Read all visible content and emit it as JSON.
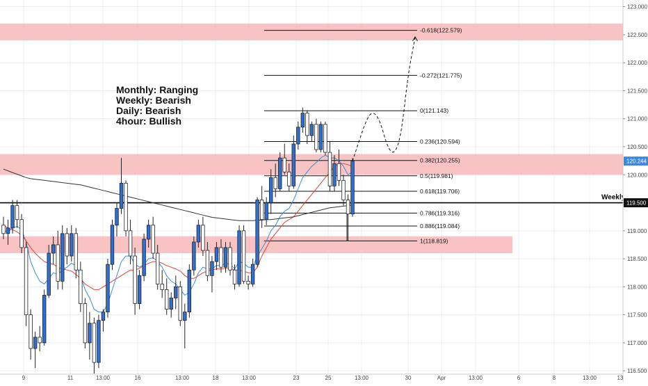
{
  "chart_data": {
    "type": "candlestick",
    "colors": {
      "bull": "#2f6fcf",
      "bear": "#ffffff",
      "wick": "#222222",
      "zone": "#f6b9b9",
      "ema_fast": "#3a8fd8",
      "ema_slow": "#e0443a",
      "ma_long": "#333333",
      "price_tag": "#3d88e3",
      "grid": "#e9ecf1"
    },
    "ylim": [
      116.44,
      123.12
    ],
    "y_ticks": [
      "116.500",
      "117.000",
      "117.500",
      "118.000",
      "118.500",
      "119.000",
      "119.500",
      "120.000",
      "120.500",
      "121.000",
      "121.500",
      "122.000",
      "122.500",
      "123.000"
    ],
    "x_ticks": [
      "9",
      "11",
      "13:00",
      "16",
      "13:00",
      "18",
      "13:00",
      "23",
      "25",
      "13:00",
      "30",
      "Apr",
      "13:00",
      "6",
      "8",
      "13:00",
      "13"
    ],
    "current_price": "120.244",
    "weekly": {
      "label": "Weekly",
      "price": 119.5,
      "price_label": "119.500"
    },
    "zones": [
      {
        "from": 122.4,
        "to": 122.7
      },
      {
        "from": 120.0,
        "to": 120.37
      },
      {
        "from": 118.6,
        "to": 118.9
      }
    ],
    "fib_levels": [
      {
        "ratio": "-0.618",
        "price": 122.579,
        "label": "-0.618(122.579)"
      },
      {
        "ratio": "-0.272",
        "price": 121.775,
        "label": "-0.272(121.775)"
      },
      {
        "ratio": "0",
        "price": 121.143,
        "label": "0(121.143)"
      },
      {
        "ratio": "0.236",
        "price": 120.594,
        "label": "0.236(120.594)"
      },
      {
        "ratio": "0.382",
        "price": 120.255,
        "label": "0.382(120.255)"
      },
      {
        "ratio": "0.5",
        "price": 119.981,
        "label": "0.5(119.981)"
      },
      {
        "ratio": "0.618",
        "price": 119.706,
        "label": "0.618(119.706)"
      },
      {
        "ratio": "0.786",
        "price": 119.316,
        "label": "0.786(119.316)"
      },
      {
        "ratio": "0.886",
        "price": 119.084,
        "label": "0.886(119.084)"
      },
      {
        "ratio": "1",
        "price": 118.819,
        "label": "1(118.819)"
      }
    ],
    "annotations": [
      "Monthly: Ranging",
      "Weekly: Bearish",
      "Daily: Bearish",
      "4hour: Bullish"
    ],
    "projection_path": [
      [
        120.3,
        120.244
      ],
      [
        120.9,
        121.0
      ],
      [
        121.2,
        121.14
      ],
      [
        121.5,
        120.95
      ],
      [
        121.8,
        120.5
      ],
      [
        122.1,
        120.35
      ],
      [
        122.4,
        120.7
      ],
      [
        122.7,
        121.8
      ],
      [
        123.0,
        122.45
      ]
    ],
    "series": [
      {
        "name": "candles",
        "ohlc": [
          [
            119.1,
            119.25,
            118.85,
            118.95
          ],
          [
            118.95,
            119.2,
            118.75,
            119.05
          ],
          [
            119.05,
            119.55,
            118.95,
            119.45
          ],
          [
            119.45,
            119.55,
            119.05,
            119.2
          ],
          [
            119.2,
            119.3,
            118.6,
            118.7
          ],
          [
            118.7,
            118.8,
            117.3,
            117.5
          ],
          [
            117.5,
            117.6,
            116.7,
            116.9
          ],
          [
            116.9,
            117.2,
            116.55,
            117.1
          ],
          [
            117.1,
            117.3,
            116.85,
            117.0
          ],
          [
            117.0,
            117.95,
            116.95,
            117.85
          ],
          [
            117.85,
            118.75,
            117.8,
            118.6
          ],
          [
            118.6,
            118.9,
            118.4,
            118.75
          ],
          [
            118.75,
            119.0,
            117.95,
            118.1
          ],
          [
            118.1,
            119.1,
            117.95,
            118.95
          ],
          [
            118.95,
            119.05,
            118.4,
            118.55
          ],
          [
            118.55,
            119.1,
            118.45,
            118.95
          ],
          [
            118.95,
            119.05,
            118.15,
            118.3
          ],
          [
            118.3,
            118.45,
            117.55,
            117.7
          ],
          [
            117.7,
            117.8,
            116.9,
            117.0
          ],
          [
            117.0,
            117.55,
            116.7,
            117.35
          ],
          [
            117.35,
            117.45,
            116.45,
            116.65
          ],
          [
            116.65,
            117.5,
            116.55,
            117.4
          ],
          [
            117.4,
            117.6,
            117.2,
            117.55
          ],
          [
            117.55,
            118.5,
            117.45,
            118.4
          ],
          [
            118.4,
            119.2,
            118.3,
            119.1
          ],
          [
            119.1,
            119.5,
            118.9,
            119.4
          ],
          [
            119.4,
            120.3,
            119.3,
            119.85
          ],
          [
            119.85,
            119.9,
            118.9,
            119.0
          ],
          [
            119.0,
            119.2,
            118.4,
            118.55
          ],
          [
            118.55,
            118.7,
            117.5,
            117.7
          ],
          [
            117.7,
            118.3,
            117.6,
            118.2
          ],
          [
            118.2,
            118.95,
            118.1,
            118.85
          ],
          [
            118.85,
            119.2,
            118.7,
            119.1
          ],
          [
            119.1,
            119.25,
            118.5,
            118.6
          ],
          [
            118.6,
            118.75,
            117.95,
            118.05
          ],
          [
            118.05,
            118.3,
            117.8,
            117.95
          ],
          [
            117.95,
            118.15,
            117.5,
            117.6
          ],
          [
            117.6,
            117.9,
            117.45,
            117.8
          ],
          [
            117.8,
            118.2,
            117.6,
            118.0
          ],
          [
            118.0,
            118.1,
            117.3,
            117.4
          ],
          [
            117.4,
            117.7,
            116.9,
            117.55
          ],
          [
            117.55,
            118.4,
            117.45,
            118.3
          ],
          [
            118.3,
            118.9,
            118.2,
            118.8
          ],
          [
            118.8,
            119.2,
            118.7,
            119.1
          ],
          [
            119.1,
            119.25,
            118.55,
            118.65
          ],
          [
            118.65,
            118.8,
            118.1,
            118.2
          ],
          [
            118.2,
            118.55,
            117.9,
            118.45
          ],
          [
            118.45,
            118.8,
            118.3,
            118.7
          ],
          [
            118.7,
            118.85,
            118.25,
            118.35
          ],
          [
            118.35,
            118.8,
            118.25,
            118.7
          ],
          [
            118.7,
            118.8,
            118.2,
            118.3
          ],
          [
            118.3,
            118.4,
            117.95,
            118.05
          ],
          [
            118.05,
            119.1,
            118.0,
            119.0
          ],
          [
            119.0,
            119.1,
            118.05,
            118.1
          ],
          [
            118.1,
            118.2,
            117.95,
            118.05
          ],
          [
            118.05,
            118.5,
            118.0,
            118.4
          ],
          [
            118.4,
            119.6,
            118.35,
            119.55
          ],
          [
            119.55,
            119.8,
            119.05,
            119.2
          ],
          [
            119.2,
            119.6,
            119.1,
            119.5
          ],
          [
            119.5,
            120.1,
            119.3,
            119.95
          ],
          [
            119.95,
            120.2,
            119.6,
            119.75
          ],
          [
            119.75,
            120.4,
            119.7,
            120.3
          ],
          [
            120.3,
            120.55,
            120.0,
            120.05
          ],
          [
            120.05,
            120.2,
            119.7,
            119.8
          ],
          [
            119.8,
            120.7,
            119.75,
            120.55
          ],
          [
            120.55,
            120.95,
            120.45,
            120.85
          ],
          [
            120.85,
            121.2,
            120.75,
            121.1
          ],
          [
            121.1,
            121.15,
            120.55,
            120.7
          ],
          [
            120.7,
            120.95,
            120.6,
            120.9
          ],
          [
            120.9,
            121.0,
            120.4,
            120.45
          ],
          [
            120.45,
            120.95,
            120.4,
            120.9
          ],
          [
            120.9,
            120.95,
            120.35,
            120.4
          ],
          [
            120.4,
            120.6,
            119.7,
            119.8
          ],
          [
            119.8,
            120.35,
            119.7,
            120.2
          ],
          [
            120.2,
            120.45,
            119.8,
            119.9
          ],
          [
            119.9,
            120.0,
            119.45,
            119.55
          ],
          [
            119.55,
            119.65,
            118.82,
            119.3
          ],
          [
            119.3,
            120.3,
            119.25,
            120.244
          ]
        ]
      },
      {
        "name": "ema_fast",
        "values": [
          119.0,
          118.98,
          119.05,
          119.08,
          119.02,
          118.8,
          118.45,
          118.25,
          118.1,
          118.05,
          118.15,
          118.25,
          118.22,
          118.3,
          118.35,
          118.42,
          118.38,
          118.2,
          117.95,
          117.8,
          117.6,
          117.55,
          117.55,
          117.7,
          117.95,
          118.2,
          118.45,
          118.55,
          118.55,
          118.4,
          118.35,
          118.4,
          118.5,
          118.52,
          118.45,
          118.35,
          118.2,
          118.1,
          118.05,
          117.95,
          117.85,
          117.9,
          118.05,
          118.25,
          118.35,
          118.32,
          118.32,
          118.38,
          118.38,
          118.42,
          118.4,
          118.32,
          118.45,
          118.42,
          118.35,
          118.35,
          118.55,
          118.68,
          118.82,
          119.0,
          119.1,
          119.25,
          119.35,
          119.4,
          119.55,
          119.75,
          119.95,
          120.05,
          120.15,
          120.22,
          120.3,
          120.35,
          120.3,
          120.3,
          120.25,
          120.15,
          120.0,
          120.05
        ]
      },
      {
        "name": "ema_slow",
        "values": [
          119.1,
          119.05,
          119.02,
          118.98,
          118.92,
          118.82,
          118.7,
          118.6,
          118.52,
          118.45,
          118.42,
          118.4,
          118.35,
          118.32,
          118.3,
          118.28,
          118.22,
          118.15,
          118.05,
          118.0,
          117.95,
          117.95,
          118.0,
          118.05,
          118.1,
          118.15,
          118.2,
          118.25,
          118.3,
          118.3,
          118.33,
          118.38,
          118.42,
          118.45,
          118.45,
          118.42,
          118.38,
          118.35,
          118.32,
          118.28,
          118.2,
          118.15,
          118.15,
          118.2,
          118.25,
          118.28,
          118.3,
          118.32,
          118.32,
          118.33,
          118.33,
          118.3,
          118.3,
          118.28,
          118.25,
          118.25,
          118.35,
          118.55,
          118.7,
          118.85,
          118.95,
          119.05,
          119.15,
          119.2,
          119.25,
          119.35,
          119.45,
          119.55,
          119.65,
          119.75,
          119.85,
          119.95,
          120.05,
          120.15,
          120.2,
          120.2,
          120.18,
          120.15
        ]
      },
      {
        "name": "ma_long",
        "values": [
          120.1,
          120.07,
          120.04,
          120.01,
          119.98,
          119.95,
          119.93,
          119.92,
          119.91,
          119.9,
          119.89,
          119.88,
          119.87,
          119.86,
          119.85,
          119.84,
          119.83,
          119.82,
          119.8,
          119.78,
          119.76,
          119.74,
          119.72,
          119.7,
          119.68,
          119.66,
          119.64,
          119.62,
          119.6,
          119.58,
          119.56,
          119.54,
          119.52,
          119.5,
          119.48,
          119.46,
          119.44,
          119.42,
          119.4,
          119.38,
          119.36,
          119.34,
          119.32,
          119.3,
          119.28,
          119.26,
          119.24,
          119.23,
          119.22,
          119.21,
          119.2,
          119.19,
          119.18,
          119.18,
          119.18,
          119.18,
          119.19,
          119.19,
          119.2,
          119.2,
          119.21,
          119.22,
          119.23,
          119.24,
          119.25,
          119.27,
          119.29,
          119.31,
          119.33,
          119.35,
          119.37,
          119.39,
          119.41,
          119.42,
          119.43,
          119.44,
          119.45,
          119.46
        ]
      }
    ]
  }
}
